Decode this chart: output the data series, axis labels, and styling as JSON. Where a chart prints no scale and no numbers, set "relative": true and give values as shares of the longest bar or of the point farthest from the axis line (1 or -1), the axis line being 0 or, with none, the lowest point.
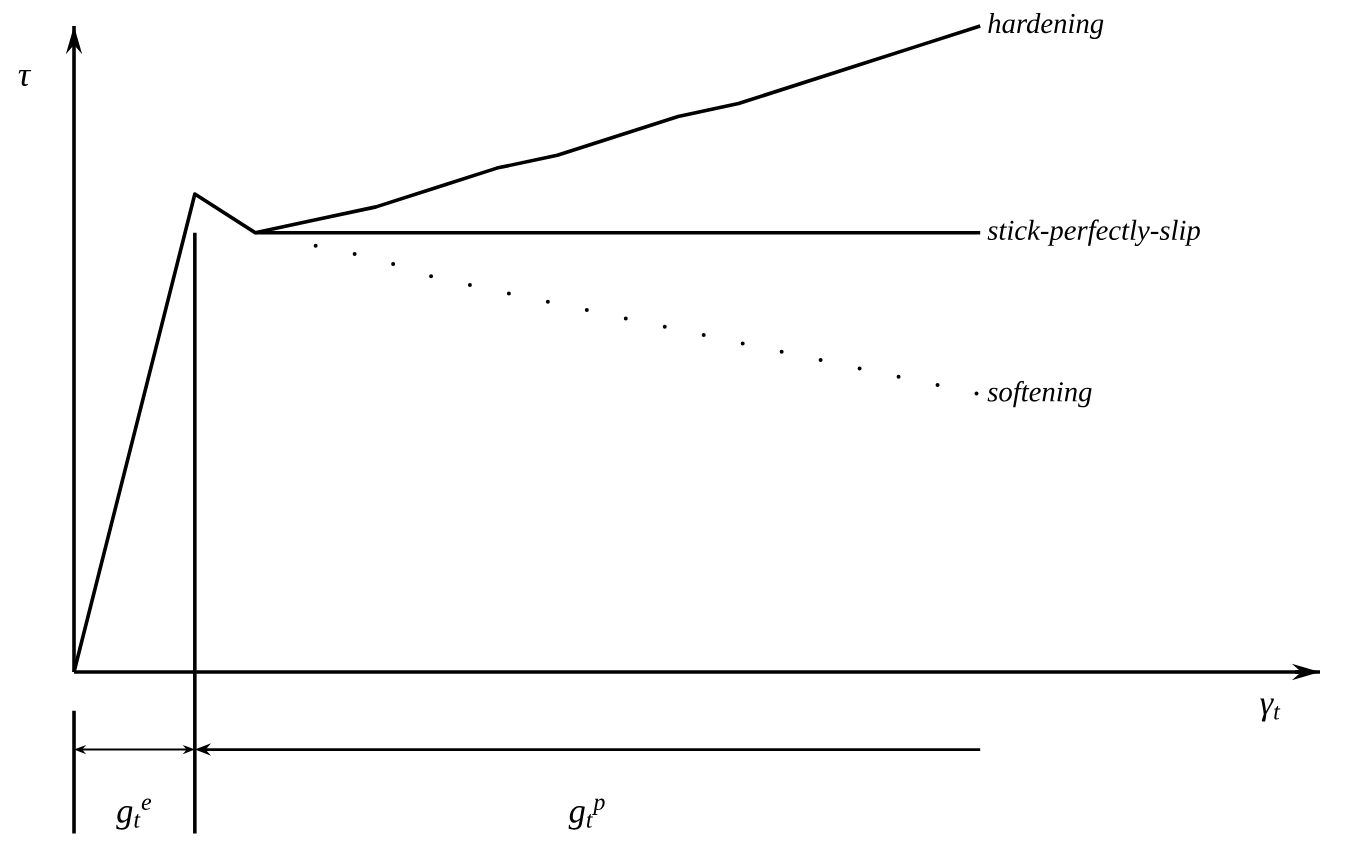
{
  "chart_data": {
    "type": "line",
    "relative": true,
    "ylabel": "τ",
    "marker": "none",
    "categories": [
      null,
      null,
      null,
      null,
      null,
      null,
      null,
      null,
      null,
      null,
      null,
      null,
      null,
      null,
      null,
      null
    ],
    "series": [
      {
        "name": "hardening",
        "color": "#000000",
        "line_style": "solid",
        "values": [
          null,
          null,
          null,
          0.68,
          0.7,
          0.72,
          0.75,
          0.78,
          0.8,
          0.83,
          0.86,
          0.88,
          0.91,
          0.94,
          0.97,
          1.0
        ]
      },
      {
        "name": "stick-perfectly-slip",
        "color": "#000000",
        "line_style": "solid",
        "values": [
          0,
          0.37,
          0.74,
          0.68,
          0.68,
          0.68,
          0.68,
          0.68,
          0.68,
          0.68,
          0.68,
          0.68,
          0.68,
          0.68,
          0.68,
          0.68
        ]
      },
      {
        "name": "softening",
        "color": "#000000",
        "line_style": "dotted",
        "values": [
          null,
          null,
          null,
          null,
          0.66,
          0.64,
          0.61,
          0.59,
          0.57,
          0.55,
          0.53,
          0.51,
          0.49,
          0.47,
          0.45,
          0.43
        ]
      }
    ],
    "annotations": [
      "g$_{t}$$^{e}$",
      "g$_{t}$$^{p}$",
      "γ$_{t}$"
    ]
  }
}
